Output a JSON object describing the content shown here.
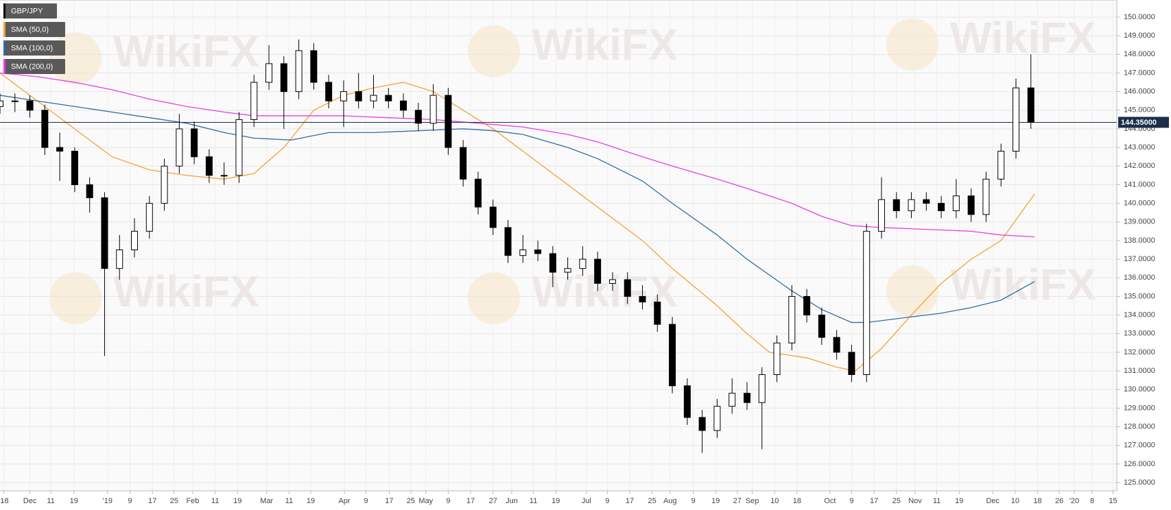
{
  "chart_data": {
    "type": "candlestick",
    "watermark": "WikiFX",
    "xlim": [
      0,
      299
    ],
    "ylim": [
      124.56,
      150.92
    ],
    "grid": true,
    "candles": {
      "name": "GBP/JPY",
      "up_color": "#ffffff",
      "down_color": "#000000",
      "x": [
        0,
        4,
        8,
        12,
        16,
        20,
        24,
        28,
        32,
        36,
        40,
        44,
        48,
        52,
        56,
        60,
        64,
        68,
        72,
        76,
        80,
        84,
        88,
        92,
        96,
        100,
        104,
        108,
        112,
        116,
        120,
        124,
        128,
        132,
        136,
        140,
        144,
        148,
        152,
        156,
        160,
        164,
        168,
        172,
        176,
        180,
        184,
        188,
        192,
        196,
        200,
        204,
        208,
        212,
        216,
        220,
        224,
        228,
        232,
        236,
        240,
        244,
        248,
        252,
        256,
        260,
        264,
        268,
        272,
        276
      ],
      "open": [
        145.2,
        145.5,
        145.5,
        145,
        143,
        142.8,
        141,
        140.3,
        136.5,
        137.5,
        138.5,
        140,
        142,
        144,
        142.5,
        141.5,
        141.5,
        144.5,
        146.5,
        147.5,
        146,
        148.2,
        146.5,
        145.5,
        146,
        145.5,
        145.8,
        145.5,
        145,
        144.3,
        145.8,
        143,
        141.3,
        139.8,
        138.7,
        137.2,
        137.5,
        137.3,
        136.3,
        136.5,
        137,
        135.7,
        135.9,
        135,
        134.7,
        133.5,
        130.2,
        128.5,
        127.8,
        129.1,
        129.8,
        129.3,
        130.8,
        132.5,
        135,
        134,
        132.8,
        132,
        130.8,
        138.5,
        140.2,
        139.6,
        140.2,
        140,
        139.6,
        140.4,
        139.4,
        141.3,
        142.8,
        146.2
      ],
      "high": [
        145.9,
        145.9,
        145.8,
        145.3,
        143.8,
        143,
        141.4,
        140.6,
        138.3,
        139.2,
        140.4,
        142.4,
        144.8,
        144.4,
        142.9,
        142.2,
        144.9,
        146.9,
        148.5,
        147.9,
        148.8,
        148.6,
        146.9,
        146.6,
        147,
        146.9,
        146.2,
        145.9,
        145.4,
        146.4,
        146.2,
        143.4,
        141.7,
        140.2,
        139.1,
        138.3,
        138,
        137.7,
        137.1,
        137.7,
        137.4,
        136.3,
        136.3,
        135.6,
        135.1,
        133.9,
        130.6,
        128.9,
        129.5,
        130.6,
        130.4,
        131.2,
        132.9,
        135.6,
        135.4,
        134.4,
        133.2,
        132.4,
        138.9,
        141.4,
        140.6,
        140.6,
        140.6,
        140.4,
        141.3,
        140.8,
        141.7,
        143.2,
        146.7,
        148
      ],
      "low": [
        144.8,
        144.9,
        144.6,
        142.6,
        141.2,
        140.6,
        139.5,
        131.8,
        135.9,
        137.1,
        138.1,
        139.6,
        141.6,
        142.1,
        141.1,
        141,
        141.1,
        144.1,
        146.1,
        144,
        145.6,
        146.1,
        145.1,
        144.1,
        145.1,
        145.1,
        145.1,
        144.6,
        143.9,
        143.9,
        142.6,
        140.9,
        139.4,
        138.3,
        136.8,
        136.8,
        136.9,
        135.5,
        135.9,
        136.1,
        135.3,
        135.3,
        134.6,
        134.3,
        133.1,
        129.8,
        128.1,
        126.6,
        127.4,
        128.7,
        128.9,
        126.8,
        130.4,
        132.1,
        133.6,
        132.4,
        131.6,
        130.4,
        130.4,
        138.1,
        139.2,
        139.2,
        139.6,
        139.2,
        139.2,
        139,
        139,
        140.9,
        142.4,
        144
      ],
      "close": [
        145.5,
        145.5,
        145,
        143,
        142.8,
        141,
        140.3,
        136.5,
        137.5,
        138.5,
        140,
        142,
        144,
        142.5,
        141.5,
        141.5,
        144.5,
        146.5,
        147.5,
        146,
        148.2,
        146.5,
        145.5,
        146,
        145.5,
        145.8,
        145.5,
        145,
        144.3,
        145.8,
        143,
        141.3,
        139.8,
        138.7,
        137.2,
        137.5,
        137.3,
        136.3,
        136.5,
        137,
        135.7,
        135.9,
        135,
        134.7,
        133.5,
        130.2,
        128.5,
        127.8,
        129.1,
        129.8,
        129.3,
        130.8,
        132.5,
        135,
        134,
        132.8,
        132,
        130.8,
        138.5,
        140.2,
        139.6,
        140.2,
        140,
        139.6,
        140.4,
        139.4,
        141.3,
        142.8,
        146.2,
        144.35
      ]
    },
    "series": [
      {
        "name": "SMA (50,0)",
        "color": "#f7a035",
        "x": [
          0,
          10,
          20,
          30,
          40,
          50,
          60,
          68,
          76,
          84,
          92,
          100,
          108,
          116,
          124,
          132,
          140,
          152,
          160,
          172,
          180,
          192,
          200,
          206,
          216,
          224,
          229,
          236,
          244,
          252,
          260,
          268,
          277
        ],
        "values": [
          147,
          145.5,
          144,
          142.5,
          141.8,
          141.5,
          141.3,
          141.6,
          143,
          145,
          145.8,
          146.2,
          146.5,
          146,
          145,
          144,
          142.8,
          141,
          139.8,
          138,
          136.5,
          134.5,
          133,
          132,
          131.7,
          131.2,
          131,
          132.2,
          134,
          135.7,
          137,
          138,
          140.5
        ]
      },
      {
        "name": "SMA (100,0)",
        "color": "#2e6ca4",
        "x": [
          0,
          10,
          20,
          30,
          40,
          50,
          60,
          68,
          78,
          88,
          100,
          112,
          124,
          132,
          140,
          152,
          160,
          172,
          180,
          192,
          200,
          212,
          220,
          228,
          232,
          240,
          252,
          260,
          268,
          277
        ],
        "values": [
          145.8,
          145.5,
          145.2,
          144.9,
          144.6,
          144.3,
          143.8,
          143.5,
          143.4,
          143.8,
          143.8,
          143.9,
          144,
          143.9,
          143.7,
          143,
          142.4,
          141.2,
          140,
          138.3,
          137,
          135.3,
          134.3,
          133.6,
          133.6,
          133.8,
          134.1,
          134.4,
          134.8,
          135.8
        ]
      },
      {
        "name": "SMA (200,0)",
        "color": "#e83de8",
        "x": [
          0,
          10,
          20,
          30,
          40,
          50,
          60,
          68,
          80,
          92,
          104,
          116,
          128,
          140,
          152,
          160,
          172,
          180,
          192,
          200,
          212,
          220,
          228,
          236,
          248,
          260,
          268,
          277
        ],
        "values": [
          147,
          146.8,
          146.5,
          146.1,
          145.6,
          145.2,
          144.9,
          144.7,
          144.7,
          144.7,
          144.6,
          144.5,
          144.3,
          144.1,
          143.7,
          143.3,
          142.5,
          142,
          141.3,
          140.8,
          140,
          139.3,
          138.8,
          138.7,
          138.6,
          138.5,
          138.3,
          138.2
        ]
      }
    ],
    "last_price": {
      "value": 144.35,
      "label": "144.35000"
    },
    "last_price_color": "#1c2e4a",
    "yticks": [
      {
        "value": 125,
        "label": "125.0000"
      },
      {
        "value": 126,
        "label": "126.0000"
      },
      {
        "value": 127,
        "label": "127.0000"
      },
      {
        "value": 128,
        "label": "128.0000"
      },
      {
        "value": 129,
        "label": "129.0000"
      },
      {
        "value": 130,
        "label": "130.0000"
      },
      {
        "value": 131,
        "label": "131.0000"
      },
      {
        "value": 132,
        "label": "132.0000"
      },
      {
        "value": 133,
        "label": "133.0000"
      },
      {
        "value": 134,
        "label": "134.0000"
      },
      {
        "value": 135,
        "label": "135.0000"
      },
      {
        "value": 136,
        "label": "136.0000"
      },
      {
        "value": 137,
        "label": "137.0000"
      },
      {
        "value": 138,
        "label": "138.0000"
      },
      {
        "value": 139,
        "label": "139.0000"
      },
      {
        "value": 140,
        "label": "140.0000"
      },
      {
        "value": 141,
        "label": "141.0000"
      },
      {
        "value": 142,
        "label": "142.0000"
      },
      {
        "value": 143,
        "label": "143.0000"
      },
      {
        "value": 144,
        "label": "144.0000"
      },
      {
        "value": 145,
        "label": "145.0000"
      },
      {
        "value": 146,
        "label": "146.0000"
      },
      {
        "value": 147,
        "label": "147.0000"
      },
      {
        "value": 148,
        "label": "148.0000"
      },
      {
        "value": 149,
        "label": "149.0000"
      },
      {
        "value": 150,
        "label": "150.0000"
      }
    ],
    "xticks": [
      {
        "value": 1,
        "label": "'18"
      },
      {
        "value": 8,
        "label": "Dec"
      },
      {
        "value": 13.6,
        "label": "11"
      },
      {
        "value": 19.8,
        "label": "19"
      },
      {
        "value": 28.8,
        "label": "'19"
      },
      {
        "value": 34.8,
        "label": "9"
      },
      {
        "value": 40.8,
        "label": "17"
      },
      {
        "value": 46.6,
        "label": "25"
      },
      {
        "value": 51.6,
        "label": "Feb"
      },
      {
        "value": 57.6,
        "label": "11"
      },
      {
        "value": 63.6,
        "label": "19"
      },
      {
        "value": 71.4,
        "label": "Mar"
      },
      {
        "value": 77.4,
        "label": "11"
      },
      {
        "value": 83.2,
        "label": "19"
      },
      {
        "value": 92.2,
        "label": "Apr"
      },
      {
        "value": 98,
        "label": "9"
      },
      {
        "value": 104.2,
        "label": "17"
      },
      {
        "value": 110,
        "label": "25"
      },
      {
        "value": 114,
        "label": "May"
      },
      {
        "value": 120,
        "label": "9"
      },
      {
        "value": 126,
        "label": "17"
      },
      {
        "value": 132,
        "label": "27"
      },
      {
        "value": 137,
        "label": "Jun"
      },
      {
        "value": 142.8,
        "label": "11"
      },
      {
        "value": 148.8,
        "label": "19"
      },
      {
        "value": 157,
        "label": "Jul"
      },
      {
        "value": 162.6,
        "label": "9"
      },
      {
        "value": 168.6,
        "label": "17"
      },
      {
        "value": 174.6,
        "label": "25"
      },
      {
        "value": 179.4,
        "label": "Aug"
      },
      {
        "value": 185.6,
        "label": "9"
      },
      {
        "value": 191.6,
        "label": "19"
      },
      {
        "value": 197.4,
        "label": "27"
      },
      {
        "value": 201.4,
        "label": "Sep"
      },
      {
        "value": 207.4,
        "label": "10"
      },
      {
        "value": 213.4,
        "label": "18"
      },
      {
        "value": 222.2,
        "label": "Oct"
      },
      {
        "value": 228,
        "label": "9"
      },
      {
        "value": 234,
        "label": "17"
      },
      {
        "value": 240,
        "label": "25"
      },
      {
        "value": 245,
        "label": "Nov"
      },
      {
        "value": 250.8,
        "label": "11"
      },
      {
        "value": 256.8,
        "label": "19"
      },
      {
        "value": 265.8,
        "label": "Dec"
      },
      {
        "value": 271.8,
        "label": "10"
      },
      {
        "value": 277.8,
        "label": "18"
      },
      {
        "value": 283.6,
        "label": "26"
      },
      {
        "value": 287.6,
        "label": "'20"
      },
      {
        "value": 292.4,
        "label": "8"
      },
      {
        "value": 298,
        "label": "15"
      }
    ]
  }
}
